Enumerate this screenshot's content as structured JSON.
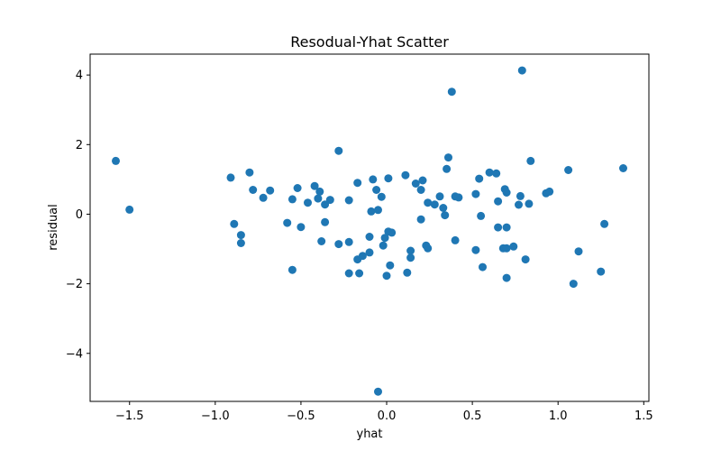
{
  "chart_data": {
    "type": "scatter",
    "title": "Resodual-Yhat Scatter",
    "xlabel": "yhat",
    "ylabel": "residual",
    "xlim": [
      -1.73,
      1.53
    ],
    "ylim": [
      -5.38,
      4.6
    ],
    "xticks": [
      -1.5,
      -1.0,
      -0.5,
      0.0,
      0.5,
      1.0,
      1.5
    ],
    "xtick_labels": [
      "−1.5",
      "−1.0",
      "−0.5",
      "0.0",
      "0.5",
      "1.0",
      "1.5"
    ],
    "yticks": [
      -4,
      -2,
      0,
      2,
      4
    ],
    "ytick_labels": [
      "−4",
      "−2",
      "0",
      "2",
      "4"
    ],
    "grid": false,
    "color": "#1f77b4",
    "points": [
      [
        -1.58,
        1.53
      ],
      [
        -1.5,
        0.13
      ],
      [
        -0.91,
        1.05
      ],
      [
        -0.89,
        -0.28
      ],
      [
        -0.85,
        -0.6
      ],
      [
        -0.85,
        -0.83
      ],
      [
        -0.8,
        1.2
      ],
      [
        -0.78,
        0.7
      ],
      [
        -0.72,
        0.47
      ],
      [
        -0.68,
        0.68
      ],
      [
        -0.58,
        -0.25
      ],
      [
        -0.55,
        0.43
      ],
      [
        -0.55,
        -1.6
      ],
      [
        -0.52,
        0.75
      ],
      [
        -0.5,
        -0.37
      ],
      [
        -0.46,
        0.33
      ],
      [
        -0.42,
        0.81
      ],
      [
        -0.4,
        0.45
      ],
      [
        -0.39,
        0.65
      ],
      [
        -0.38,
        -0.78
      ],
      [
        -0.36,
        0.28
      ],
      [
        -0.36,
        -0.23
      ],
      [
        -0.33,
        0.41
      ],
      [
        -0.28,
        1.82
      ],
      [
        -0.28,
        -0.86
      ],
      [
        -0.22,
        -0.8
      ],
      [
        -0.22,
        0.4
      ],
      [
        -0.22,
        -1.7
      ],
      [
        -0.17,
        0.9
      ],
      [
        -0.17,
        -1.3
      ],
      [
        -0.16,
        -1.7
      ],
      [
        -0.14,
        -1.2
      ],
      [
        -0.1,
        -1.1
      ],
      [
        -0.1,
        -0.65
      ],
      [
        -0.09,
        0.08
      ],
      [
        -0.08,
        1.0
      ],
      [
        -0.06,
        0.7
      ],
      [
        -0.05,
        0.12
      ],
      [
        -0.05,
        -5.1
      ],
      [
        -0.03,
        0.5
      ],
      [
        -0.02,
        -0.9
      ],
      [
        -0.01,
        -0.68
      ],
      [
        0.0,
        -1.77
      ],
      [
        0.01,
        1.03
      ],
      [
        0.01,
        -0.5
      ],
      [
        0.02,
        -1.47
      ],
      [
        0.03,
        -0.53
      ],
      [
        0.11,
        1.12
      ],
      [
        0.12,
        -1.68
      ],
      [
        0.14,
        -1.05
      ],
      [
        0.14,
        -1.25
      ],
      [
        0.17,
        0.88
      ],
      [
        0.2,
        0.7
      ],
      [
        0.2,
        -0.15
      ],
      [
        0.21,
        0.97
      ],
      [
        0.23,
        -0.9
      ],
      [
        0.24,
        0.33
      ],
      [
        0.24,
        -0.98
      ],
      [
        0.28,
        0.28
      ],
      [
        0.31,
        0.51
      ],
      [
        0.33,
        0.18
      ],
      [
        0.34,
        -0.03
      ],
      [
        0.35,
        1.3
      ],
      [
        0.36,
        1.63
      ],
      [
        0.38,
        3.52
      ],
      [
        0.4,
        0.51
      ],
      [
        0.4,
        -0.75
      ],
      [
        0.42,
        0.48
      ],
      [
        0.52,
        0.58
      ],
      [
        0.52,
        -1.03
      ],
      [
        0.54,
        1.02
      ],
      [
        0.55,
        -0.05
      ],
      [
        0.56,
        -1.52
      ],
      [
        0.6,
        1.2
      ],
      [
        0.64,
        1.17
      ],
      [
        0.65,
        0.37
      ],
      [
        0.65,
        -0.38
      ],
      [
        0.68,
        -0.98
      ],
      [
        0.69,
        0.72
      ],
      [
        0.7,
        0.62
      ],
      [
        0.7,
        -0.38
      ],
      [
        0.7,
        -1.83
      ],
      [
        0.7,
        -0.98
      ],
      [
        0.74,
        -0.93
      ],
      [
        0.77,
        0.27
      ],
      [
        0.78,
        0.52
      ],
      [
        0.79,
        4.13
      ],
      [
        0.81,
        -1.3
      ],
      [
        0.83,
        0.3
      ],
      [
        0.84,
        1.53
      ],
      [
        0.93,
        0.6
      ],
      [
        0.95,
        0.65
      ],
      [
        1.06,
        1.27
      ],
      [
        1.09,
        -2.0
      ],
      [
        1.12,
        -1.07
      ],
      [
        1.25,
        -1.65
      ],
      [
        1.27,
        -0.28
      ],
      [
        1.38,
        1.32
      ]
    ]
  }
}
